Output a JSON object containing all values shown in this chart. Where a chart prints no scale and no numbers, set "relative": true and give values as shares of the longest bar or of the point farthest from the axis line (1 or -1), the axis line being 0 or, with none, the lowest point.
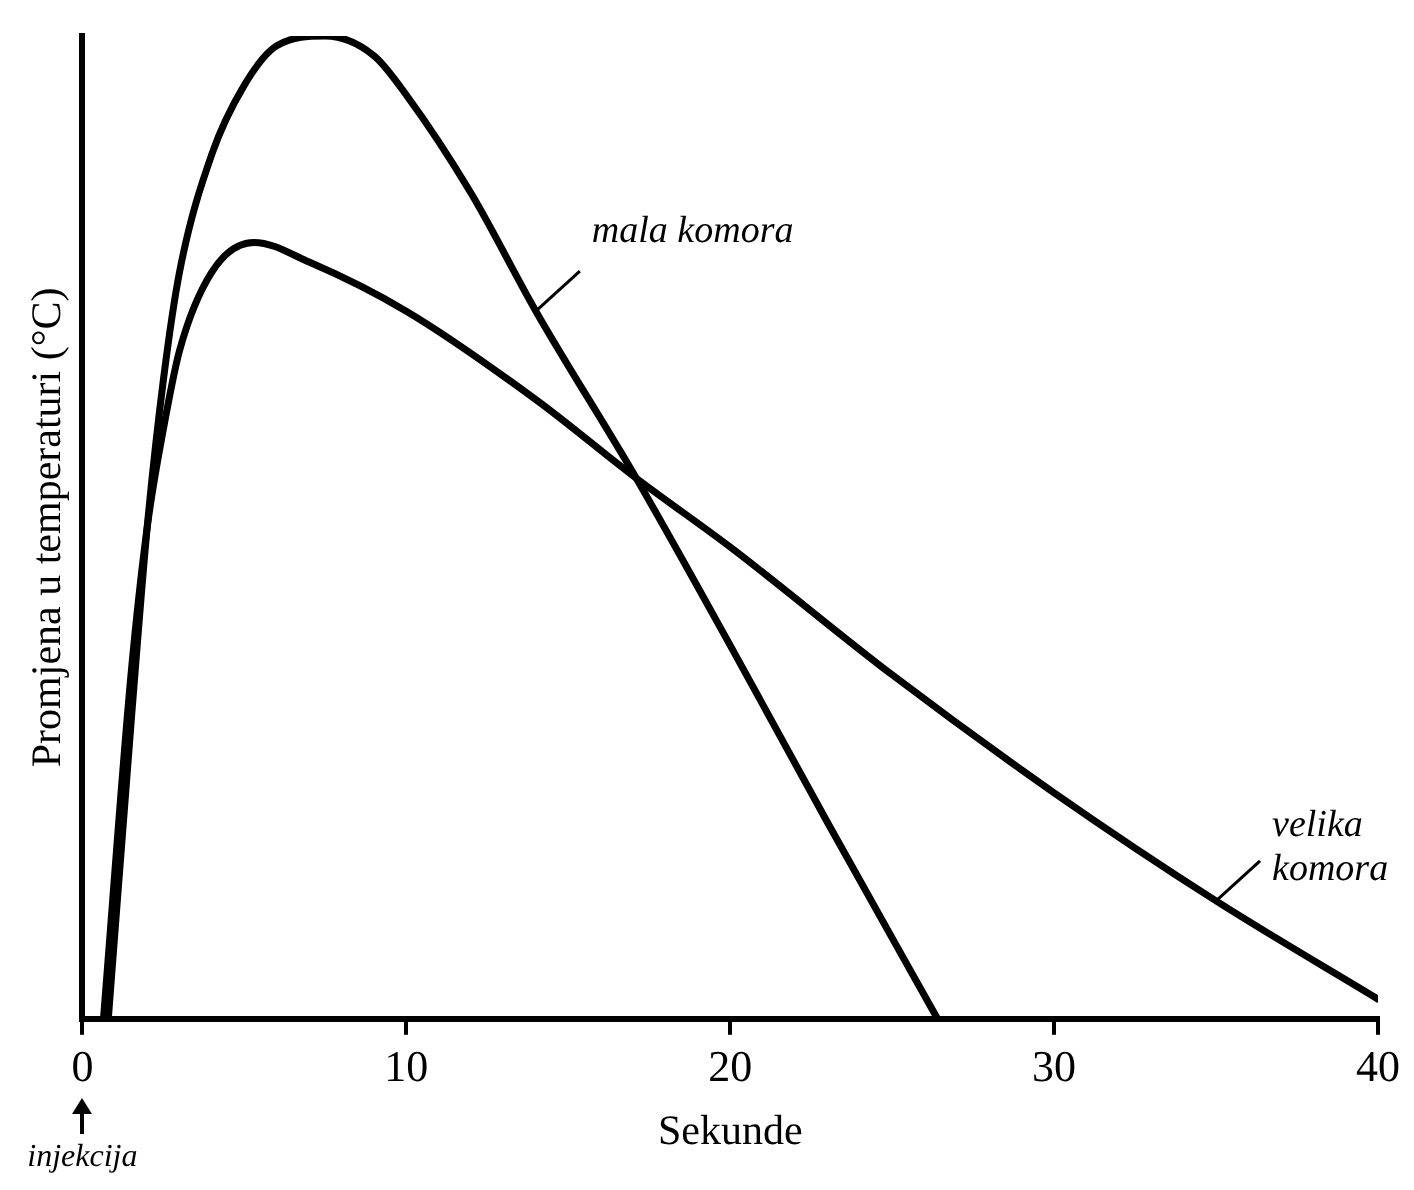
{
  "chart_data": {
    "type": "line",
    "relative": true,
    "xlabel": "Sekunde",
    "ylabel": "Promjena u temperaturi (°C)",
    "xlim": [
      0,
      40
    ],
    "xticks": [
      0,
      10,
      20,
      30,
      40
    ],
    "grid": false,
    "legend": false,
    "marker": "none",
    "line_style": "solid",
    "tick_labels": "x",
    "annotations": [
      "injekcija"
    ],
    "series": [
      {
        "name": "mala komora",
        "color": "#000000",
        "x": [
          0.8,
          1.5,
          2,
          2.5,
          3,
          4,
          5,
          6,
          7.5,
          9,
          10,
          12,
          14,
          17.1,
          20,
          23,
          26.4
        ],
        "values": [
          0,
          0.3,
          0.5,
          0.65,
          0.76,
          0.88,
          0.95,
          0.99,
          1,
          0.98,
          0.94,
          0.84,
          0.72,
          0.55,
          0.38,
          0.2,
          0
        ]
      },
      {
        "name": "velika komora",
        "color": "#000000",
        "x": [
          0.65,
          1.5,
          2,
          2.5,
          3,
          4,
          5.3,
          7,
          10,
          14,
          17.1,
          20,
          25,
          30,
          35,
          40
        ],
        "values": [
          0,
          0.35,
          0.5,
          0.6,
          0.68,
          0.76,
          0.79,
          0.77,
          0.72,
          0.63,
          0.55,
          0.48,
          0.35,
          0.23,
          0.12,
          0.02
        ]
      }
    ]
  }
}
